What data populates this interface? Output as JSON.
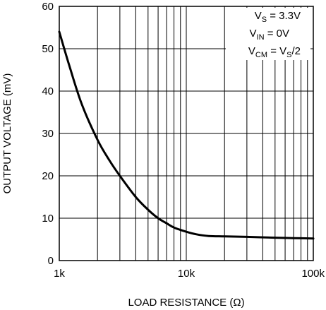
{
  "chart_data": {
    "type": "line",
    "title": "",
    "xlabel": "LOAD RESISTANCE (Ω)",
    "ylabel": "OUTPUT VOLTAGE (mV)",
    "x_scale": "log",
    "xlim": [
      1000,
      100000
    ],
    "ylim": [
      0,
      60
    ],
    "grid": true,
    "x_tick_labels": [
      "1k",
      "10k",
      "100k"
    ],
    "x_tick_values": [
      1000,
      10000,
      100000
    ],
    "y_tick_labels": [
      "0",
      "10",
      "20",
      "30",
      "40",
      "50",
      "60"
    ],
    "y_tick_values": [
      0,
      10,
      20,
      30,
      40,
      50,
      60
    ],
    "annotations": [
      {
        "main": "V",
        "sub": "S",
        "rest": " = 3.3V"
      },
      {
        "main": "V",
        "sub": "IN",
        "rest": " = 0V"
      },
      {
        "main": "V",
        "sub": "CM",
        "rest": " = V",
        "sub2": "S",
        "rest2": "/2"
      }
    ],
    "series": [
      {
        "x": [
          1000,
          1200,
          1500,
          2000,
          2500,
          3000,
          4000,
          5000,
          6000,
          7000,
          8000,
          10000,
          12000,
          15000,
          20000,
          30000,
          50000,
          70000,
          100000
        ],
        "y": [
          54,
          46,
          37,
          28.5,
          23.5,
          20,
          15,
          12,
          10,
          8.8,
          7.8,
          6.8,
          6.2,
          5.8,
          5.7,
          5.6,
          5.4,
          5.3,
          5.2
        ]
      }
    ]
  }
}
